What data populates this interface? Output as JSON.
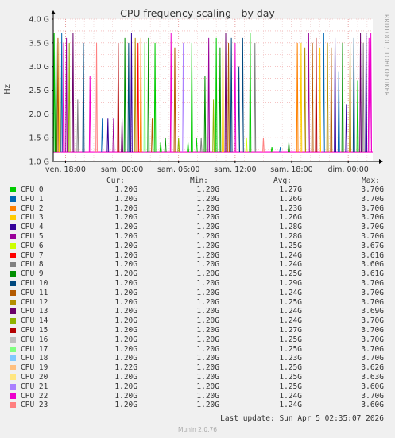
{
  "title": "CPU frequency scaling - by day",
  "side_text": "RRDTOOL / TOBI OETIKER",
  "footer": "Munin 2.0.76",
  "last_update": "Last update: Sun Apr  5 02:35:07 2026",
  "legend_headers": {
    "cur": "Cur:",
    "min": "Min:",
    "avg": "Avg:",
    "max": "Max:"
  },
  "cpus": [
    {
      "name": "CPU 0",
      "color": "#00cc00",
      "cur": "1.20G",
      "min": "1.20G",
      "avg": "1.27G",
      "max": "3.70G"
    },
    {
      "name": "CPU 1",
      "color": "#0066b3",
      "cur": "1.20G",
      "min": "1.20G",
      "avg": "1.26G",
      "max": "3.70G"
    },
    {
      "name": "CPU 2",
      "color": "#ff8000",
      "cur": "1.20G",
      "min": "1.20G",
      "avg": "1.23G",
      "max": "3.70G"
    },
    {
      "name": "CPU 3",
      "color": "#ffcc00",
      "cur": "1.20G",
      "min": "1.20G",
      "avg": "1.26G",
      "max": "3.70G"
    },
    {
      "name": "CPU 4",
      "color": "#330099",
      "cur": "1.20G",
      "min": "1.20G",
      "avg": "1.28G",
      "max": "3.70G"
    },
    {
      "name": "CPU 5",
      "color": "#990099",
      "cur": "1.20G",
      "min": "1.20G",
      "avg": "1.28G",
      "max": "3.70G"
    },
    {
      "name": "CPU 6",
      "color": "#ccff00",
      "cur": "1.20G",
      "min": "1.20G",
      "avg": "1.25G",
      "max": "3.67G"
    },
    {
      "name": "CPU 7",
      "color": "#ff0000",
      "cur": "1.20G",
      "min": "1.20G",
      "avg": "1.24G",
      "max": "3.61G"
    },
    {
      "name": "CPU 8",
      "color": "#808080",
      "cur": "1.20G",
      "min": "1.20G",
      "avg": "1.24G",
      "max": "3.60G"
    },
    {
      "name": "CPU 9",
      "color": "#008f00",
      "cur": "1.20G",
      "min": "1.20G",
      "avg": "1.25G",
      "max": "3.61G"
    },
    {
      "name": "CPU 10",
      "color": "#00487d",
      "cur": "1.20G",
      "min": "1.20G",
      "avg": "1.29G",
      "max": "3.70G"
    },
    {
      "name": "CPU 11",
      "color": "#b35a00",
      "cur": "1.20G",
      "min": "1.20G",
      "avg": "1.24G",
      "max": "3.70G"
    },
    {
      "name": "CPU 12",
      "color": "#b38f00",
      "cur": "1.20G",
      "min": "1.20G",
      "avg": "1.25G",
      "max": "3.70G"
    },
    {
      "name": "CPU 13",
      "color": "#6b006b",
      "cur": "1.20G",
      "min": "1.20G",
      "avg": "1.24G",
      "max": "3.69G"
    },
    {
      "name": "CPU 14",
      "color": "#8fb300",
      "cur": "1.20G",
      "min": "1.20G",
      "avg": "1.24G",
      "max": "3.70G"
    },
    {
      "name": "CPU 15",
      "color": "#b30000",
      "cur": "1.20G",
      "min": "1.20G",
      "avg": "1.27G",
      "max": "3.70G"
    },
    {
      "name": "CPU 16",
      "color": "#bebebe",
      "cur": "1.20G",
      "min": "1.20G",
      "avg": "1.25G",
      "max": "3.70G"
    },
    {
      "name": "CPU 17",
      "color": "#80ff80",
      "cur": "1.20G",
      "min": "1.20G",
      "avg": "1.25G",
      "max": "3.70G"
    },
    {
      "name": "CPU 18",
      "color": "#80c9ff",
      "cur": "1.20G",
      "min": "1.20G",
      "avg": "1.23G",
      "max": "3.70G"
    },
    {
      "name": "CPU 19",
      "color": "#ffc080",
      "cur": "1.22G",
      "min": "1.20G",
      "avg": "1.25G",
      "max": "3.62G"
    },
    {
      "name": "CPU 20",
      "color": "#ffe680",
      "cur": "1.20G",
      "min": "1.20G",
      "avg": "1.25G",
      "max": "3.63G"
    },
    {
      "name": "CPU 21",
      "color": "#aa80ff",
      "cur": "1.20G",
      "min": "1.20G",
      "avg": "1.25G",
      "max": "3.60G"
    },
    {
      "name": "CPU 22",
      "color": "#ee00cc",
      "cur": "1.20G",
      "min": "1.20G",
      "avg": "1.24G",
      "max": "3.70G"
    },
    {
      "name": "CPU 23",
      "color": "#ff8080",
      "cur": "1.20G",
      "min": "1.20G",
      "avg": "1.24G",
      "max": "3.60G"
    }
  ],
  "chart_data": {
    "type": "line",
    "title": "CPU frequency scaling - by day",
    "ylabel": "Hz",
    "ylim": [
      1.0,
      4.0
    ],
    "yticks": [
      "1.0 G",
      "1.5 G",
      "2.0 G",
      "2.5 G",
      "3.0 G",
      "3.5 G",
      "4.0 G"
    ],
    "ytick_values": [
      1.0,
      1.5,
      2.0,
      2.5,
      3.0,
      3.5,
      4.0
    ],
    "xticks": [
      "ven. 18:00",
      "sam. 00:00",
      "sam. 06:00",
      "sam. 12:00",
      "sam. 18:00",
      "dim. 00:00"
    ],
    "xtick_hours": [
      0,
      6,
      12,
      18,
      24,
      30
    ],
    "x_range_hours": [
      -1.3,
      32.6
    ],
    "baseline_ghz": 1.2,
    "grid": true,
    "spikes": [
      {
        "t": -1.2,
        "v": 3.7,
        "cpu": 0
      },
      {
        "t": -1.0,
        "v": 3.5,
        "cpu": 9
      },
      {
        "t": -0.8,
        "v": 3.6,
        "cpu": 11
      },
      {
        "t": -0.6,
        "v": 3.5,
        "cpu": 3
      },
      {
        "t": -0.4,
        "v": 3.7,
        "cpu": 1
      },
      {
        "t": -0.2,
        "v": 3.5,
        "cpu": 22
      },
      {
        "t": 0.1,
        "v": 3.6,
        "cpu": 5
      },
      {
        "t": 0.4,
        "v": 3.5,
        "cpu": 14
      },
      {
        "t": 0.8,
        "v": 3.7,
        "cpu": 13
      },
      {
        "t": 1.3,
        "v": 2.3,
        "cpu": 8
      },
      {
        "t": 1.9,
        "v": 3.5,
        "cpu": 10
      },
      {
        "t": 2.6,
        "v": 2.8,
        "cpu": 22
      },
      {
        "t": 3.3,
        "v": 3.5,
        "cpu": 23
      },
      {
        "t": 3.9,
        "v": 1.9,
        "cpu": 1
      },
      {
        "t": 4.5,
        "v": 1.9,
        "cpu": 4
      },
      {
        "t": 5.1,
        "v": 1.9,
        "cpu": 5
      },
      {
        "t": 5.6,
        "v": 3.5,
        "cpu": 15
      },
      {
        "t": 6.0,
        "v": 1.9,
        "cpu": 13
      },
      {
        "t": 6.3,
        "v": 3.6,
        "cpu": 9
      },
      {
        "t": 6.7,
        "v": 3.5,
        "cpu": 10
      },
      {
        "t": 7.0,
        "v": 3.7,
        "cpu": 4
      },
      {
        "t": 7.4,
        "v": 3.6,
        "cpu": 12
      },
      {
        "t": 7.7,
        "v": 3.5,
        "cpu": 7
      },
      {
        "t": 8.0,
        "v": 3.6,
        "cpu": 2
      },
      {
        "t": 8.4,
        "v": 3.5,
        "cpu": 17
      },
      {
        "t": 8.8,
        "v": 3.6,
        "cpu": 9
      },
      {
        "t": 9.2,
        "v": 1.9,
        "cpu": 11
      },
      {
        "t": 9.5,
        "v": 3.5,
        "cpu": 0
      },
      {
        "t": 10.1,
        "v": 1.4,
        "cpu": 0
      },
      {
        "t": 10.6,
        "v": 1.5,
        "cpu": 9
      },
      {
        "t": 11.2,
        "v": 3.7,
        "cpu": 22
      },
      {
        "t": 11.6,
        "v": 3.4,
        "cpu": 11
      },
      {
        "t": 12.0,
        "v": 1.5,
        "cpu": 14
      },
      {
        "t": 12.5,
        "v": 3.5,
        "cpu": 21
      },
      {
        "t": 13.0,
        "v": 1.4,
        "cpu": 0
      },
      {
        "t": 13.4,
        "v": 3.5,
        "cpu": 0
      },
      {
        "t": 13.9,
        "v": 1.5,
        "cpu": 0
      },
      {
        "t": 14.4,
        "v": 1.5,
        "cpu": 8
      },
      {
        "t": 14.8,
        "v": 2.8,
        "cpu": 9
      },
      {
        "t": 15.2,
        "v": 3.6,
        "cpu": 5
      },
      {
        "t": 15.7,
        "v": 2.3,
        "cpu": 14
      },
      {
        "t": 16.0,
        "v": 3.6,
        "cpu": 0
      },
      {
        "t": 16.4,
        "v": 3.4,
        "cpu": 9
      },
      {
        "t": 16.7,
        "v": 3.6,
        "cpu": 3
      },
      {
        "t": 17.0,
        "v": 3.7,
        "cpu": 13
      },
      {
        "t": 17.3,
        "v": 3.5,
        "cpu": 11
      },
      {
        "t": 17.6,
        "v": 3.6,
        "cpu": 10
      },
      {
        "t": 18.0,
        "v": 3.5,
        "cpu": 22
      },
      {
        "t": 18.4,
        "v": 3.0,
        "cpu": 10
      },
      {
        "t": 18.8,
        "v": 3.6,
        "cpu": 10
      },
      {
        "t": 19.2,
        "v": 1.5,
        "cpu": 6
      },
      {
        "t": 19.6,
        "v": 3.7,
        "cpu": 0
      },
      {
        "t": 20.1,
        "v": 3.5,
        "cpu": 8
      },
      {
        "t": 21.0,
        "v": 1.5,
        "cpu": 23
      },
      {
        "t": 21.9,
        "v": 1.3,
        "cpu": 0
      },
      {
        "t": 22.8,
        "v": 1.3,
        "cpu": 1
      },
      {
        "t": 23.7,
        "v": 1.4,
        "cpu": 9
      },
      {
        "t": 24.6,
        "v": 3.5,
        "cpu": 2
      },
      {
        "t": 25.0,
        "v": 3.5,
        "cpu": 3
      },
      {
        "t": 25.4,
        "v": 3.4,
        "cpu": 12
      },
      {
        "t": 25.8,
        "v": 3.7,
        "cpu": 5
      },
      {
        "t": 26.2,
        "v": 3.5,
        "cpu": 11
      },
      {
        "t": 26.6,
        "v": 3.6,
        "cpu": 15
      },
      {
        "t": 27.0,
        "v": 3.4,
        "cpu": 3
      },
      {
        "t": 27.4,
        "v": 3.7,
        "cpu": 1
      },
      {
        "t": 27.8,
        "v": 3.5,
        "cpu": 12
      },
      {
        "t": 28.2,
        "v": 3.4,
        "cpu": 11
      },
      {
        "t": 28.6,
        "v": 3.6,
        "cpu": 4
      },
      {
        "t": 29.0,
        "v": 2.9,
        "cpu": 1
      },
      {
        "t": 29.4,
        "v": 3.5,
        "cpu": 9
      },
      {
        "t": 29.8,
        "v": 2.2,
        "cpu": 4
      },
      {
        "t": 30.2,
        "v": 3.5,
        "cpu": 12
      },
      {
        "t": 30.6,
        "v": 3.6,
        "cpu": 10
      },
      {
        "t": 31.0,
        "v": 2.7,
        "cpu": 0
      },
      {
        "t": 31.3,
        "v": 3.7,
        "cpu": 13
      },
      {
        "t": 31.6,
        "v": 3.5,
        "cpu": 8
      },
      {
        "t": 31.9,
        "v": 3.7,
        "cpu": 4
      },
      {
        "t": 32.2,
        "v": 3.6,
        "cpu": 22
      },
      {
        "t": 32.4,
        "v": 3.7,
        "cpu": 22
      }
    ]
  }
}
